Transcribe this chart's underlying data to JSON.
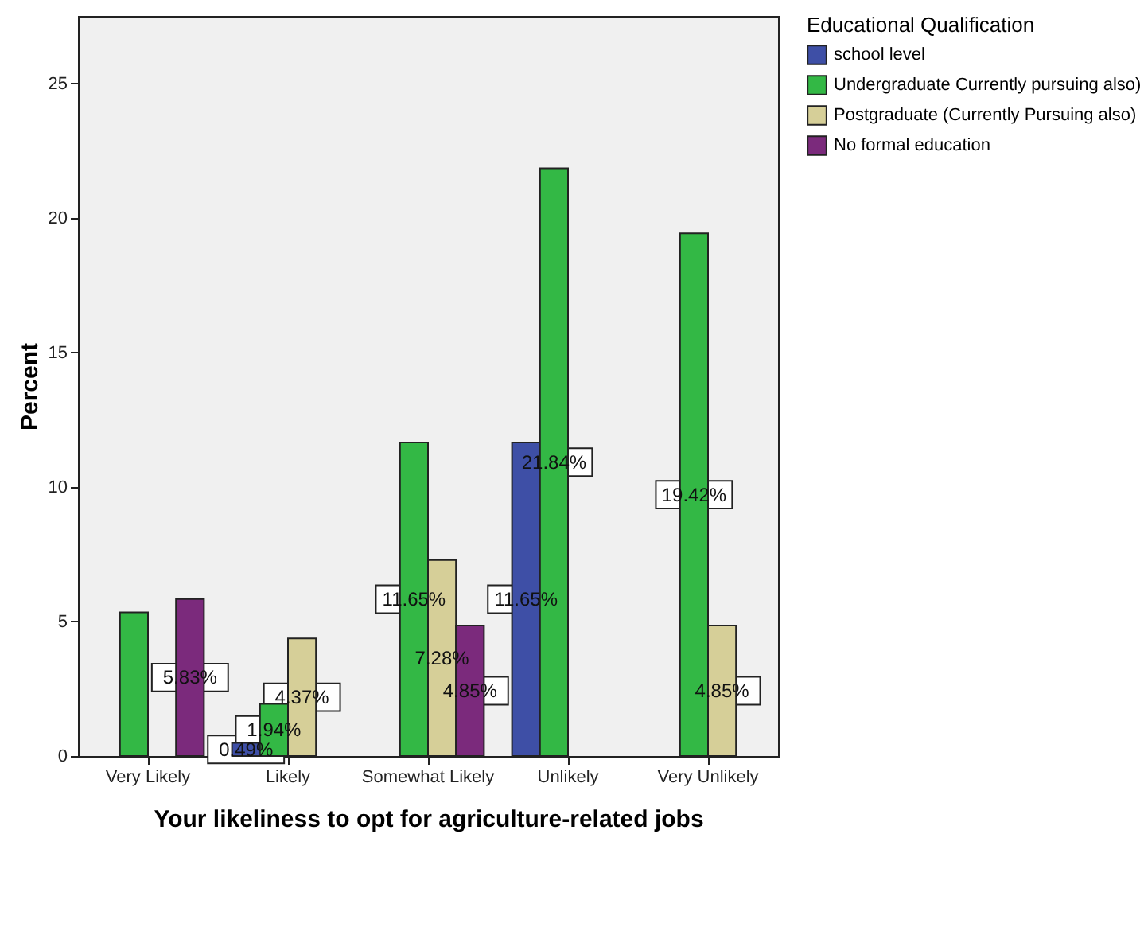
{
  "chart_data": {
    "type": "bar",
    "xlabel": "Your likeliness to opt for agriculture-related jobs",
    "ylabel": "Percent",
    "legend_title": "Educational Qualification",
    "legend": "top right",
    "grid": false,
    "categories": [
      "Very Likely",
      "Likely",
      "Somewhat Likely",
      "Unlikely",
      "Very Unlikely"
    ],
    "ylim": [
      0,
      27.5
    ],
    "yticks": [
      0,
      5,
      10,
      15,
      20,
      25
    ],
    "series": [
      {
        "name": "school level",
        "color": "#3e4fa6",
        "values": [
          null,
          0.49,
          null,
          11.65,
          null
        ],
        "value_labels": [
          null,
          "0.49%",
          null,
          "11.65%",
          null
        ]
      },
      {
        "name": "Undergraduate Currently pursuing also)",
        "color": "#33b845",
        "values": [
          5.34,
          1.94,
          11.65,
          21.84,
          19.42
        ],
        "value_labels": [
          null,
          "1.94%",
          "11.65%",
          "21.84%",
          "19.42%"
        ]
      },
      {
        "name": "Postgraduate (Currently Pursuing also)",
        "color": "#d6cf98",
        "values": [
          null,
          4.37,
          7.28,
          null,
          4.85
        ],
        "value_labels": [
          null,
          "4.37%",
          "7.28%",
          null,
          "4.85%"
        ]
      },
      {
        "name": "No formal education",
        "color": "#7b2a7c",
        "values": [
          5.83,
          null,
          4.85,
          null,
          null
        ],
        "value_labels": [
          "5.83%",
          null,
          "4.85%",
          null,
          null
        ]
      }
    ]
  }
}
